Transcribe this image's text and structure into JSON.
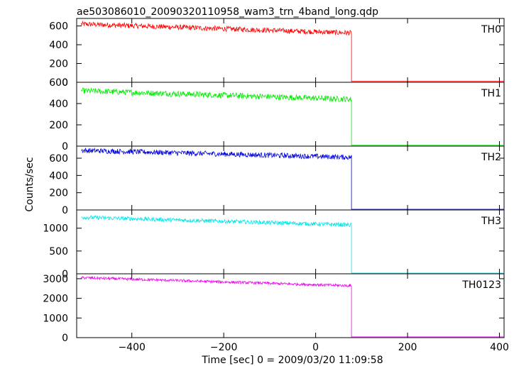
{
  "chart_data": {
    "type": "line",
    "title": "ae503086010_20090320110958_wam3_trn_4band_long.qdp",
    "xlabel": "Time [sec] 0 = 2009/03/20 11:09:58",
    "ylabel": "Counts/sec",
    "xlim": [
      -520,
      410
    ],
    "x_ticks": [
      -400,
      -200,
      0,
      200,
      400
    ],
    "x_tick_labels": [
      "−400",
      "−200",
      "0",
      "200",
      "400"
    ],
    "grid": false,
    "panels": [
      {
        "name": "TH0",
        "color": "#ff0000",
        "ylim": [
          0,
          680
        ],
        "y_ticks": [
          0,
          200,
          400,
          600
        ],
        "y_tick_labels": [
          "0",
          "200",
          "400",
          "600"
        ],
        "series": {
          "x_range": [
            -510,
            410
          ],
          "drop_x": 78,
          "start_level": 620,
          "end_level": 525,
          "noise": 55,
          "after_level": 10
        }
      },
      {
        "name": "TH1",
        "color": "#00ee00",
        "ylim": [
          0,
          600
        ],
        "y_ticks": [
          0,
          200,
          400,
          600
        ],
        "y_tick_labels": [
          "0",
          "200",
          "400",
          "600"
        ],
        "series": {
          "x_range": [
            -510,
            410
          ],
          "drop_x": 78,
          "start_level": 520,
          "end_level": 440,
          "noise": 55,
          "after_level": 8
        }
      },
      {
        "name": "TH2",
        "color": "#0000dd",
        "ylim": [
          0,
          740
        ],
        "y_ticks": [
          0,
          200,
          400,
          600
        ],
        "y_tick_labels": [
          "0",
          "200",
          "400",
          "600"
        ],
        "series": {
          "x_range": [
            -510,
            410
          ],
          "drop_x": 78,
          "start_level": 690,
          "end_level": 610,
          "noise": 60,
          "after_level": 8
        }
      },
      {
        "name": "TH3",
        "color": "#00e6e6",
        "ylim": [
          0,
          1400
        ],
        "y_ticks": [
          0,
          500,
          1000
        ],
        "y_tick_labels": [
          "0",
          "500",
          "1000"
        ],
        "series": {
          "x_range": [
            -510,
            410
          ],
          "drop_x": 78,
          "start_level": 1240,
          "end_level": 1070,
          "noise": 90,
          "after_level": 15
        }
      },
      {
        "name": "TH0123",
        "color": "#ee00ee",
        "ylim": [
          0,
          3250
        ],
        "y_ticks": [
          0,
          1000,
          2000,
          3000
        ],
        "y_tick_labels": [
          "0",
          "1000",
          "2000",
          "3000"
        ],
        "series": {
          "x_range": [
            -510,
            410
          ],
          "drop_x": 78,
          "start_level": 3050,
          "end_level": 2640,
          "noise": 140,
          "after_level": 40
        }
      }
    ]
  }
}
